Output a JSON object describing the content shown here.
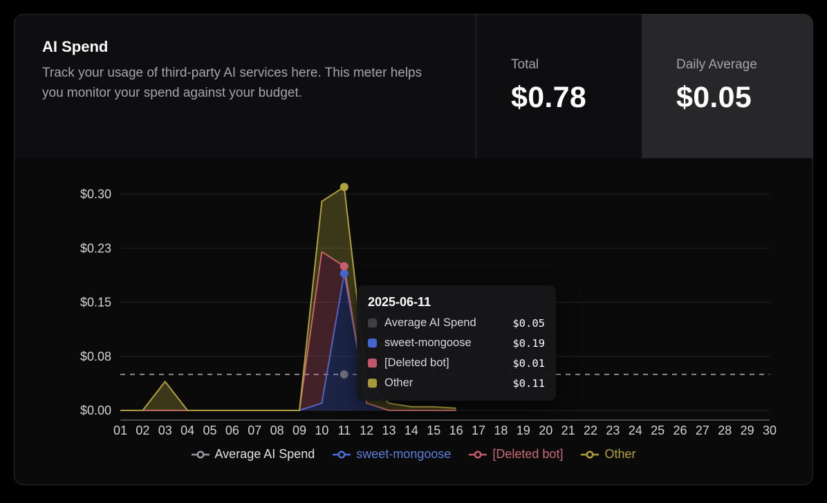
{
  "header": {
    "title": "AI Spend",
    "description": "Track your usage of third-party AI services here. This meter helps you monitor your spend against your budget.",
    "stats": [
      {
        "label": "Total",
        "value": "$0.78",
        "selected": false
      },
      {
        "label": "Daily Average",
        "value": "$0.05",
        "selected": true
      }
    ]
  },
  "tooltip": {
    "date": "2025-06-11",
    "rows": [
      {
        "label": "Average AI Spend",
        "value": "$0.05",
        "color": "#3f3f46"
      },
      {
        "label": "sweet-mongoose",
        "value": "$0.19",
        "color": "#4465cf"
      },
      {
        "label": "[Deleted bot]",
        "value": "$0.01",
        "color": "#c2566a"
      },
      {
        "label": "Other",
        "value": "$0.11",
        "color": "#a7983a"
      }
    ]
  },
  "chart_data": {
    "type": "area",
    "stacked": true,
    "x": [
      "01",
      "02",
      "03",
      "04",
      "05",
      "06",
      "07",
      "08",
      "09",
      "10",
      "11",
      "12",
      "13",
      "14",
      "15",
      "16",
      "17",
      "18",
      "19",
      "20",
      "21",
      "22",
      "23",
      "24",
      "25",
      "26",
      "27",
      "28",
      "29",
      "30"
    ],
    "ylim": [
      0,
      0.3
    ],
    "y_ticks": [
      {
        "value": 0,
        "label": "$0.00"
      },
      {
        "value": 0.075,
        "label": "$0.08"
      },
      {
        "value": 0.15,
        "label": "$0.15"
      },
      {
        "value": 0.225,
        "label": "$0.23"
      },
      {
        "value": 0.3,
        "label": "$0.30"
      }
    ],
    "series": [
      {
        "name": "sweet-mongoose",
        "color": "#4465cf",
        "values": [
          0,
          0,
          0,
          0,
          0,
          0,
          0,
          0,
          0,
          0.01,
          0.19,
          0.01,
          0,
          0,
          0,
          0
        ]
      },
      {
        "name": "[Deleted bot]",
        "color": "#c65d6d",
        "values": [
          0,
          0,
          0,
          0,
          0,
          0,
          0,
          0,
          0,
          0.21,
          0.01,
          0,
          0,
          0,
          0,
          0
        ]
      },
      {
        "name": "Other",
        "color": "#b1a13c",
        "values": [
          0,
          0,
          0.04,
          0,
          0,
          0,
          0,
          0,
          0,
          0.07,
          0.11,
          0.03,
          0.01,
          0.005,
          0.005,
          0.003
        ]
      }
    ],
    "average_line": {
      "name": "Average AI Spend",
      "value": 0.05,
      "color": "#87878f",
      "style": "dashed"
    },
    "highlight": {
      "x_index": 10,
      "date": "2025-06-11",
      "average_dot_color": "#6e6e78"
    },
    "legend": [
      {
        "label": "Average AI Spend",
        "color": "#9a9aa2",
        "text_color": "#e3e3e6"
      },
      {
        "label": "sweet-mongoose",
        "color": "#4b6fd6",
        "text_color": "#5b7fd9"
      },
      {
        "label": "[Deleted bot]",
        "color": "#c65d6d",
        "text_color": "#cb6a77"
      },
      {
        "label": "Other",
        "color": "#b1a13c",
        "text_color": "#b3a23c"
      }
    ],
    "grid": "horizontal",
    "legend_position": "bottom"
  }
}
